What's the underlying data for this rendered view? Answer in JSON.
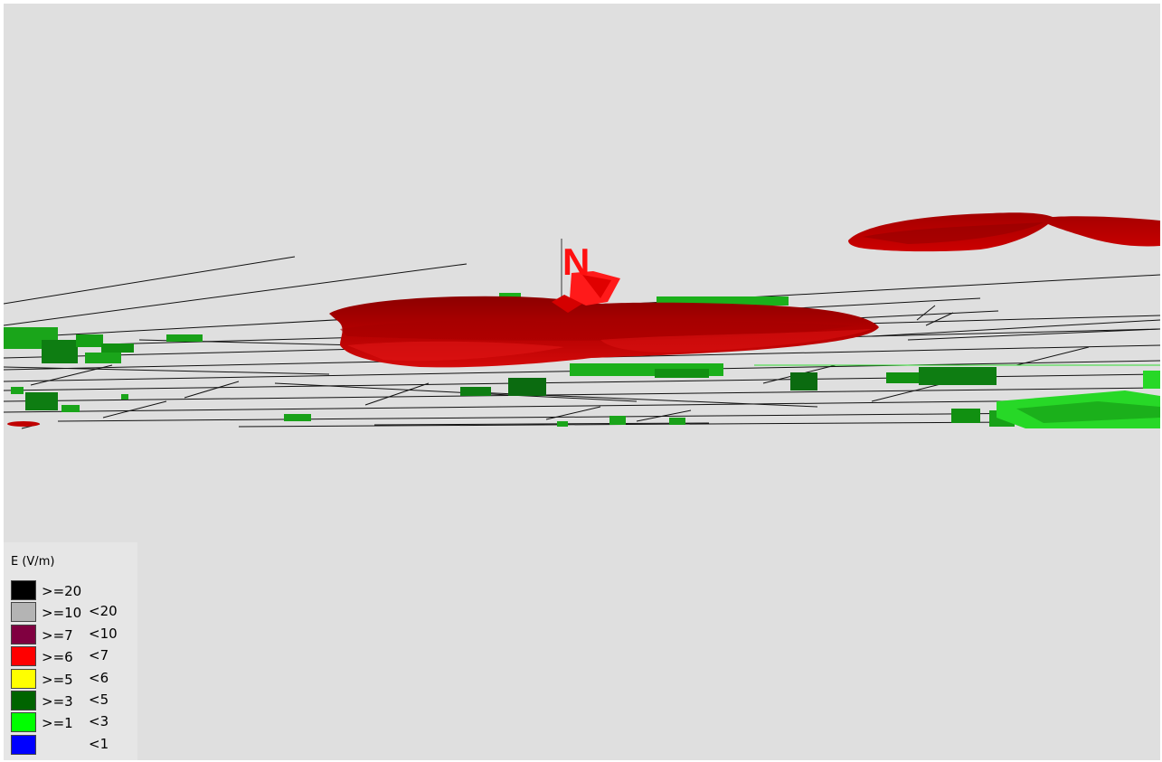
{
  "map": {
    "north_label": "N",
    "colors": {
      "background": "#dfdfdf",
      "field_dark": "#9b0000",
      "field_mid": "#c40000",
      "field_bright": "#ff1a1a",
      "building_dark": "#0b6b10",
      "building_mid": "#19a119",
      "building_light": "#27d827",
      "roads": "#111111"
    }
  },
  "legend": {
    "title": "E (V/m)",
    "items": [
      {
        "lo": ">=20",
        "hi": "",
        "color": "#000000"
      },
      {
        "lo": ">=10",
        "hi": "<20",
        "color": "#b4b4b4"
      },
      {
        "lo": ">=7",
        "hi": "<10",
        "color": "#800040"
      },
      {
        "lo": ">=6",
        "hi": "<7",
        "color": "#ff0000"
      },
      {
        "lo": ">=5",
        "hi": "<6",
        "color": "#ffff00"
      },
      {
        "lo": ">=3",
        "hi": "<5",
        "color": "#006400"
      },
      {
        "lo": ">=1",
        "hi": "<3",
        "color": "#00ff00"
      },
      {
        "lo": "",
        "hi": "<1",
        "color": "#0000ff"
      }
    ]
  }
}
